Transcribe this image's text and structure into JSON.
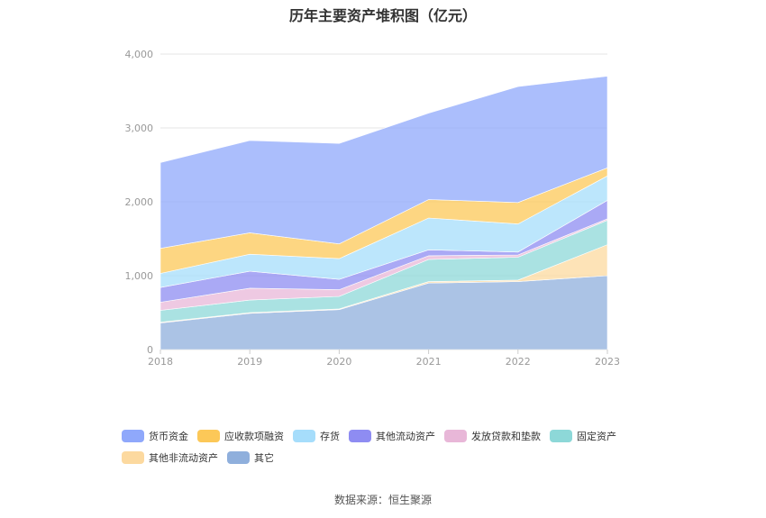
{
  "chart_data": {
    "type": "area",
    "stacked": true,
    "title": "历年主要资产堆积图（亿元）",
    "x": [
      "2018",
      "2019",
      "2020",
      "2021",
      "2022",
      "2023"
    ],
    "y_ticks": [
      "0",
      "1,000",
      "2,000",
      "3,000",
      "4,000"
    ],
    "ylim": [
      0,
      4000
    ],
    "grid": true,
    "legend_position": "bottom",
    "series": [
      {
        "name": "其它",
        "color": "#8fafdc",
        "values": [
          360,
          490,
          540,
          900,
          920,
          1000
        ]
      },
      {
        "name": "其他非流动资产",
        "color": "#fcd99f",
        "values": [
          10,
          10,
          10,
          20,
          20,
          420
        ]
      },
      {
        "name": "固定资产",
        "color": "#8dd8d8",
        "values": [
          160,
          170,
          170,
          300,
          310,
          330
        ]
      },
      {
        "name": "发放贷款和垫款",
        "color": "#e8b7d8",
        "values": [
          110,
          160,
          90,
          50,
          30,
          20
        ]
      },
      {
        "name": "其他流动资产",
        "color": "#8e8cf2",
        "values": [
          200,
          230,
          140,
          80,
          40,
          250
        ]
      },
      {
        "name": "存货",
        "color": "#a6ddfb",
        "values": [
          190,
          230,
          280,
          430,
          380,
          330
        ]
      },
      {
        "name": "应收款项融资",
        "color": "#fcc858",
        "values": [
          340,
          290,
          200,
          250,
          290,
          110
        ]
      },
      {
        "name": "货币资金",
        "color": "#8fa8fb",
        "values": [
          1160,
          1250,
          1360,
          1170,
          1570,
          1240
        ]
      }
    ],
    "legend_order": [
      "货币资金",
      "应收款项融资",
      "存货",
      "其他流动资产",
      "发放贷款和垫款",
      "固定资产",
      "其他非流动资产",
      "其它"
    ]
  },
  "source": "数据来源：恒生聚源"
}
